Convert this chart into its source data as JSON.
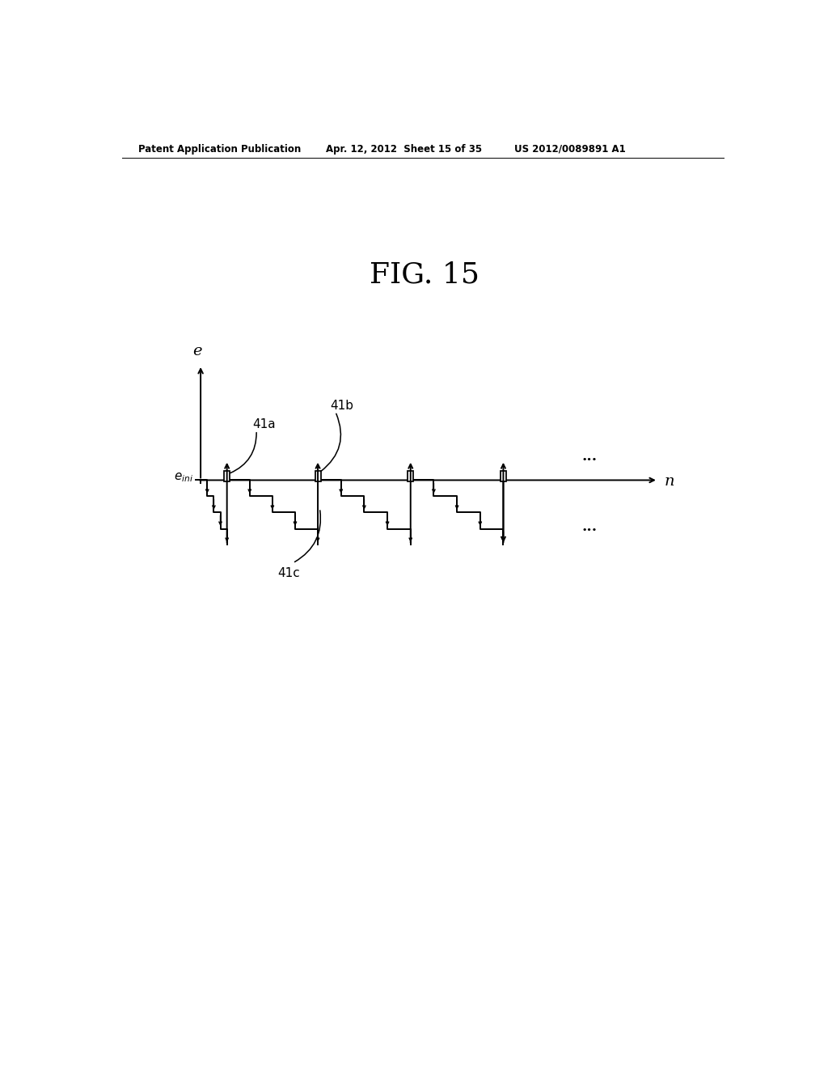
{
  "title": "FIG. 15",
  "header_left": "Patent Application Publication",
  "header_mid": "Apr. 12, 2012  Sheet 15 of 35",
  "header_right": "US 2012/0089891 A1",
  "bg_color": "#ffffff",
  "line_color": "#000000",
  "label_e": "e",
  "label_n": "n",
  "label_41a": "41a",
  "label_41b": "41b",
  "label_41c": "41c",
  "label_dots_right": "...",
  "label_dots_bottom": "..."
}
